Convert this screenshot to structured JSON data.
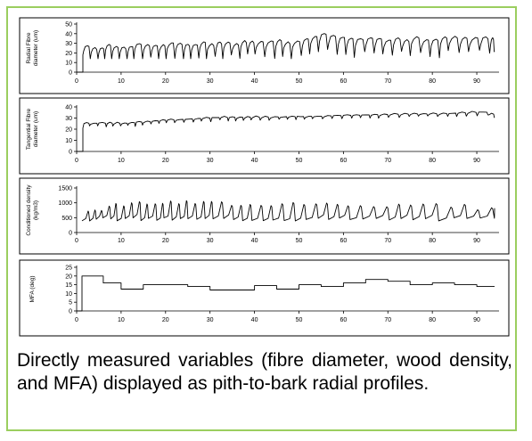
{
  "caption": "Directly measured variables (fibre diameter, wood density, and MFA) displayed as pith-to-bark radial profiles.",
  "colors": {
    "frame_border": "#9bce5f",
    "line": "#000000",
    "panel_border": "#000000"
  },
  "chart_data": [
    {
      "type": "line",
      "ylabel": "Radial Fibre diameter (um)",
      "ylim": [
        0,
        50
      ],
      "yticks": [
        0,
        10,
        20,
        30,
        40,
        50
      ],
      "xlim": [
        0,
        95
      ],
      "xticks": [
        0,
        10,
        20,
        30,
        40,
        50,
        60,
        70,
        80,
        90
      ],
      "pattern": "oscillating profile with one sharp dip per growth ring; peaks rise from about 28 um near the pith to about 38-42 um near the bark",
      "series": [
        {
          "x": [
            0,
            1.4,
            1.4,
            10,
            20,
            30,
            40,
            50,
            55,
            60,
            70,
            80,
            90,
            94
          ],
          "y": [
            0,
            0,
            20,
            27,
            30,
            31,
            32,
            34,
            40,
            35,
            35,
            35,
            37,
            36
          ]
        }
      ]
    },
    {
      "type": "line",
      "ylabel": "Tangential Fibre diameter (um)",
      "ylim": [
        0,
        40
      ],
      "yticks": [
        0,
        10,
        20,
        30,
        40
      ],
      "xlim": [
        0,
        95
      ],
      "xticks": [
        0,
        10,
        20,
        30,
        40,
        50,
        60,
        70,
        80,
        90
      ],
      "pattern": "slowly rising profile with small drops at ring boundaries",
      "series": [
        {
          "x": [
            0,
            1.4,
            1.4,
            10,
            20,
            30,
            40,
            50,
            60,
            70,
            80,
            90,
            94
          ],
          "y": [
            0,
            0,
            22,
            25,
            28,
            30,
            30.5,
            31,
            32,
            33,
            33.5,
            35,
            32
          ]
        }
      ]
    },
    {
      "type": "line",
      "ylabel": "Conditioned density (kg/m3)",
      "ylim": [
        0,
        1500
      ],
      "yticks": [
        0,
        500,
        1000,
        1500
      ],
      "xlim": [
        0,
        95
      ],
      "xticks": [
        0,
        10,
        20,
        30,
        40,
        50,
        60,
        70,
        80,
        90
      ],
      "pattern": "sawtooth: density rises to a latewood peak near 1000 kg/m3 then drops to about 400 kg/m3 in every ring; rings get wider toward the bark",
      "series": [
        {
          "x": [
            1,
            10,
            20,
            30,
            40,
            50,
            60,
            70,
            80,
            90,
            94
          ],
          "y": [
            700,
            1000,
            1000,
            1000,
            950,
            1000,
            950,
            900,
            950,
            800,
            850
          ]
        }
      ]
    },
    {
      "type": "line",
      "ylabel": "MFA (deg)",
      "ylim": [
        0,
        25
      ],
      "yticks": [
        0,
        5,
        10,
        15,
        20,
        25
      ],
      "xlim": [
        0,
        95
      ],
      "xticks": [
        0,
        10,
        20,
        30,
        40,
        50,
        60,
        70,
        80,
        90
      ],
      "pattern": "step profile, one value per segment",
      "series": [
        {
          "x": [
            0,
            1.2,
            1.2,
            6,
            6,
            10,
            10,
            15,
            15,
            25,
            25,
            30,
            30,
            35,
            35,
            40,
            40,
            45,
            45,
            50,
            50,
            55,
            55,
            60,
            60,
            65,
            65,
            70,
            70,
            75,
            75,
            80,
            80,
            85,
            85,
            90,
            90,
            94
          ],
          "y": [
            0,
            0,
            20,
            20,
            16,
            16,
            12.5,
            12.5,
            15,
            15,
            14,
            14,
            12,
            12,
            12,
            12,
            14.5,
            14.5,
            12.5,
            12.5,
            15,
            15,
            14,
            14,
            16,
            16,
            18,
            18,
            17,
            17,
            15,
            15,
            16,
            16,
            15,
            15,
            14,
            14
          ]
        }
      ]
    }
  ]
}
